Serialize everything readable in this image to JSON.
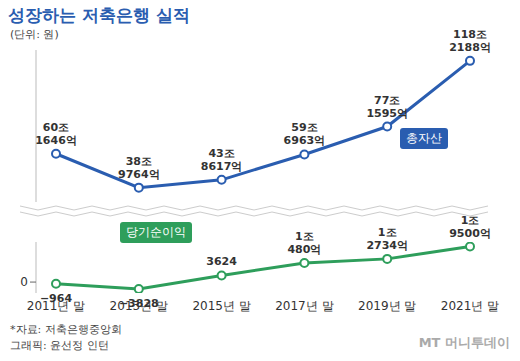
{
  "chart_data": [
    {
      "type": "line",
      "title": "성장하는 저축은행 실적",
      "subtitle": "(단위: 원)",
      "categories": [
        "2011년 말",
        "2013년 말",
        "2015년 말",
        "2017년 말",
        "2019년 말",
        "2021년 말"
      ],
      "series": [
        {
          "name": "총자산",
          "color": "#2a5db0",
          "marker": "circle",
          "values": [
            601646,
            389764,
            438617,
            596963,
            771595,
            1182188
          ],
          "value_labels": [
            "60조 1646억",
            "38조 9764억",
            "43조 8617억",
            "59조 6963억",
            "77조 1595억",
            "118조 2188억"
          ]
        }
      ],
      "ylim": [
        300000,
        1250000
      ],
      "yticks": [],
      "tick_labels": false,
      "data_labels": true
    },
    {
      "type": "line",
      "categories": [
        "2011년 말",
        "2013년 말",
        "2015년 말",
        "2017년 말",
        "2019년 말",
        "2021년 말"
      ],
      "series": [
        {
          "name": "당기순이익",
          "color": "#2e9e5b",
          "marker": "circle",
          "values": [
            -964,
            -3828,
            3624,
            10480,
            12734,
            19500
          ],
          "value_labels": [
            "−964",
            "−3828",
            "3624",
            "1조 480억",
            "1조 2734억",
            "1조 9500억"
          ]
        }
      ],
      "ylim": [
        -6000,
        22000
      ],
      "yticks": [
        0
      ],
      "tick_labels": true,
      "data_labels": true,
      "annotations": [
        "*자료: 저축은행중앙회",
        "그래픽: 윤선정 인턴",
        "MT 머니투데이"
      ]
    }
  ]
}
